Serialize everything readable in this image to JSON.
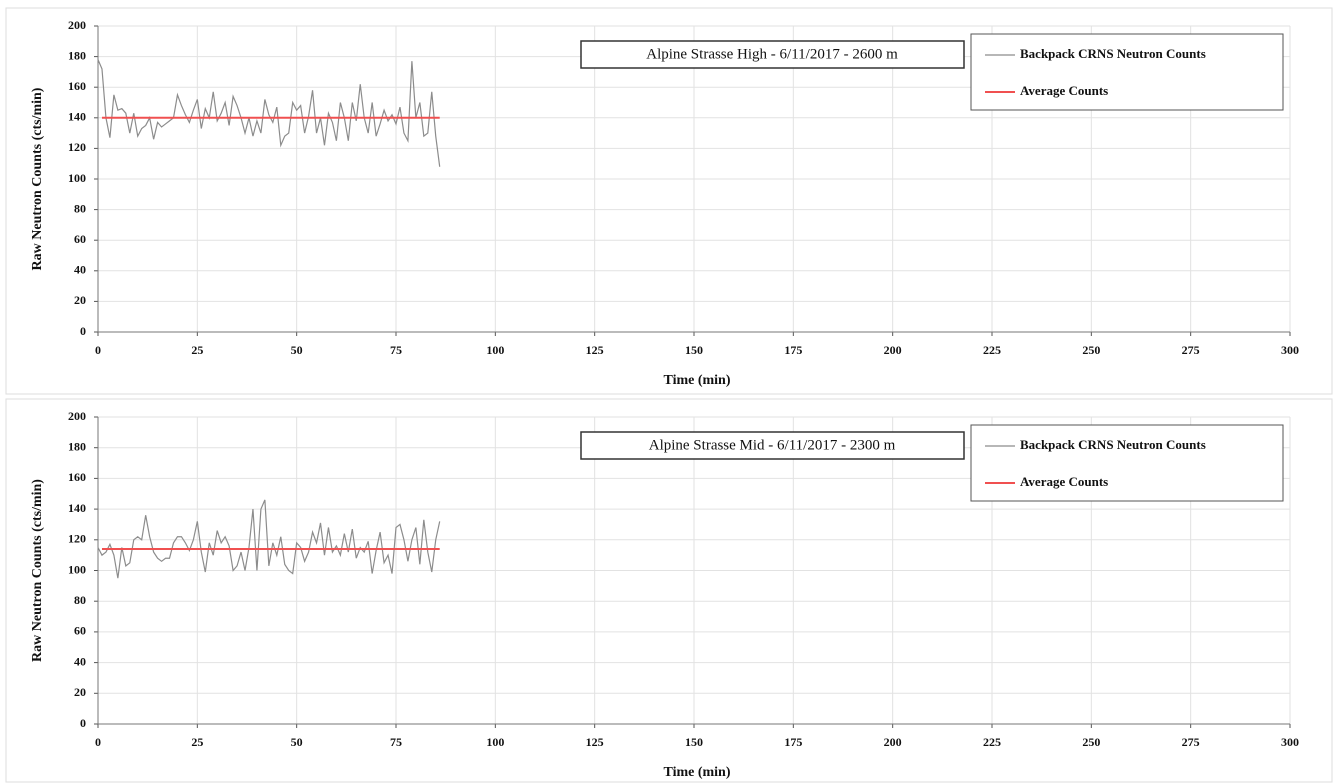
{
  "chart_data": [
    {
      "type": "line",
      "title": "Alpine Strasse High - 6/11/2017 - 2600 m",
      "xlabel": "Time (min)",
      "ylabel": "Raw Neutron Counts (cts/min)",
      "x": [
        0,
        1,
        2,
        3,
        4,
        5,
        6,
        7,
        8,
        9,
        10,
        11,
        12,
        13,
        14,
        15,
        16,
        17,
        18,
        19,
        20,
        21,
        22,
        23,
        24,
        25,
        26,
        27,
        28,
        29,
        30,
        31,
        32,
        33,
        34,
        35,
        36,
        37,
        38,
        39,
        40,
        41,
        42,
        43,
        44,
        45,
        46,
        47,
        48,
        49,
        50,
        51,
        52,
        53,
        54,
        55,
        56,
        57,
        58,
        59,
        60,
        61,
        62,
        63,
        64,
        65,
        66,
        67,
        68,
        69,
        70,
        71,
        72,
        73,
        74,
        75,
        76,
        77,
        78,
        79,
        80,
        81,
        82,
        83,
        84,
        85,
        86
      ],
      "series": [
        {
          "name": "Backpack CRNS Neutron Counts",
          "color": "#8c8c8c",
          "values": [
            178,
            172,
            140,
            127,
            155,
            145,
            146,
            143,
            130,
            143,
            128,
            133,
            135,
            140,
            126,
            137,
            134,
            136,
            138,
            140,
            155,
            148,
            142,
            137,
            145,
            152,
            133,
            146,
            140,
            157,
            138,
            143,
            150,
            135,
            154,
            148,
            140,
            130,
            140,
            128,
            138,
            130,
            152,
            142,
            137,
            147,
            122,
            128,
            130,
            150,
            145,
            148,
            130,
            141,
            158,
            130,
            140,
            122,
            143,
            137,
            125,
            150,
            140,
            125,
            150,
            138,
            162,
            140,
            130,
            150,
            128,
            136,
            145,
            138,
            142,
            136,
            147,
            130,
            125,
            177,
            140,
            150,
            128,
            130,
            157,
            128,
            108
          ]
        },
        {
          "name": "Average Counts",
          "color": "#f05050",
          "x": [
            1,
            86
          ],
          "values": [
            140,
            140
          ]
        }
      ],
      "xlim": [
        0,
        300
      ],
      "xticks": [
        0,
        25,
        50,
        75,
        100,
        125,
        150,
        175,
        200,
        225,
        250,
        275,
        300
      ],
      "ylim": [
        0,
        200
      ],
      "yticks": [
        0,
        20,
        40,
        60,
        80,
        100,
        120,
        140,
        160,
        180,
        200
      ],
      "grid": true
    },
    {
      "type": "line",
      "title": "Alpine Strasse Mid - 6/11/2017 - 2300 m",
      "xlabel": "Time (min)",
      "ylabel": "Raw Neutron Counts (cts/min)",
      "x": [
        0,
        1,
        2,
        3,
        4,
        5,
        6,
        7,
        8,
        9,
        10,
        11,
        12,
        13,
        14,
        15,
        16,
        17,
        18,
        19,
        20,
        21,
        22,
        23,
        24,
        25,
        26,
        27,
        28,
        29,
        30,
        31,
        32,
        33,
        34,
        35,
        36,
        37,
        38,
        39,
        40,
        41,
        42,
        43,
        44,
        45,
        46,
        47,
        48,
        49,
        50,
        51,
        52,
        53,
        54,
        55,
        56,
        57,
        58,
        59,
        60,
        61,
        62,
        63,
        64,
        65,
        66,
        67,
        68,
        69,
        70,
        71,
        72,
        73,
        74,
        75,
        76,
        77,
        78,
        79,
        80,
        81,
        82,
        83,
        84,
        85,
        86
      ],
      "series": [
        {
          "name": "Backpack CRNS Neutron Counts",
          "color": "#8c8c8c",
          "values": [
            115,
            110,
            112,
            117,
            110,
            95,
            115,
            103,
            105,
            120,
            122,
            120,
            136,
            122,
            112,
            108,
            106,
            108,
            108,
            118,
            122,
            122,
            118,
            113,
            120,
            132,
            112,
            99,
            118,
            110,
            126,
            118,
            122,
            116,
            100,
            103,
            112,
            100,
            115,
            140,
            100,
            140,
            146,
            103,
            118,
            110,
            122,
            104,
            100,
            98,
            118,
            115,
            106,
            112,
            125,
            118,
            131,
            110,
            128,
            112,
            116,
            110,
            124,
            112,
            127,
            108,
            115,
            112,
            119,
            98,
            113,
            125,
            105,
            110,
            98,
            128,
            130,
            120,
            106,
            120,
            128,
            104,
            133,
            112,
            99,
            120,
            132
          ]
        },
        {
          "name": "Average Counts",
          "color": "#f05050",
          "x": [
            1,
            86
          ],
          "values": [
            114,
            114
          ]
        }
      ],
      "xlim": [
        0,
        300
      ],
      "xticks": [
        0,
        25,
        50,
        75,
        100,
        125,
        150,
        175,
        200,
        225,
        250,
        275,
        300
      ],
      "ylim": [
        0,
        200
      ],
      "yticks": [
        0,
        20,
        40,
        60,
        80,
        100,
        120,
        140,
        160,
        180,
        200
      ],
      "grid": true
    }
  ]
}
